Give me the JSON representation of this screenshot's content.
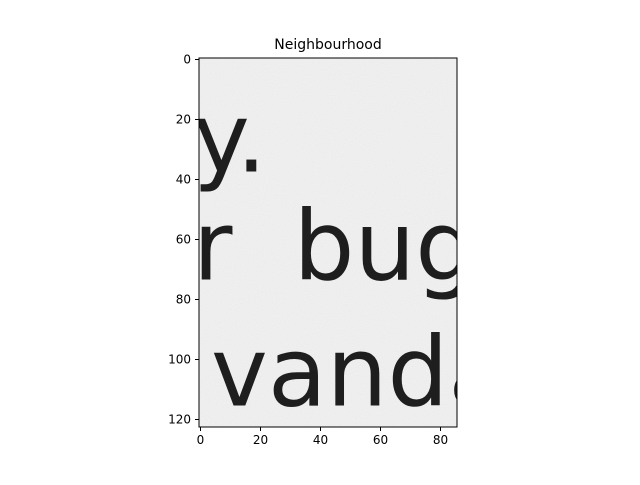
{
  "chart_data": {
    "type": "image",
    "title": "Neighbourhood",
    "xlabel": "",
    "ylabel": "",
    "xlim": [
      -0.5,
      85.5
    ],
    "ylim": [
      122.5,
      -0.5
    ],
    "xticks": [
      0,
      20,
      40,
      60,
      80
    ],
    "yticks": [
      0,
      20,
      40,
      60,
      80,
      100,
      120
    ],
    "xtick_labels": [
      "0",
      "20",
      "40",
      "60",
      "80"
    ],
    "ytick_labels": [
      "0",
      "20",
      "40",
      "60",
      "80",
      "100",
      "120"
    ],
    "colormap": "gray",
    "grid": false,
    "legend": "none",
    "image_text_lines": [
      {
        "text": "y.",
        "row": 30
      },
      {
        "text": "r  bug",
        "row": 66
      },
      {
        "text": "vanda",
        "row": 108
      }
    ],
    "colors": {
      "background": "#f2f2f2",
      "ink": "#1e1e1e",
      "axis": "#000000"
    }
  }
}
